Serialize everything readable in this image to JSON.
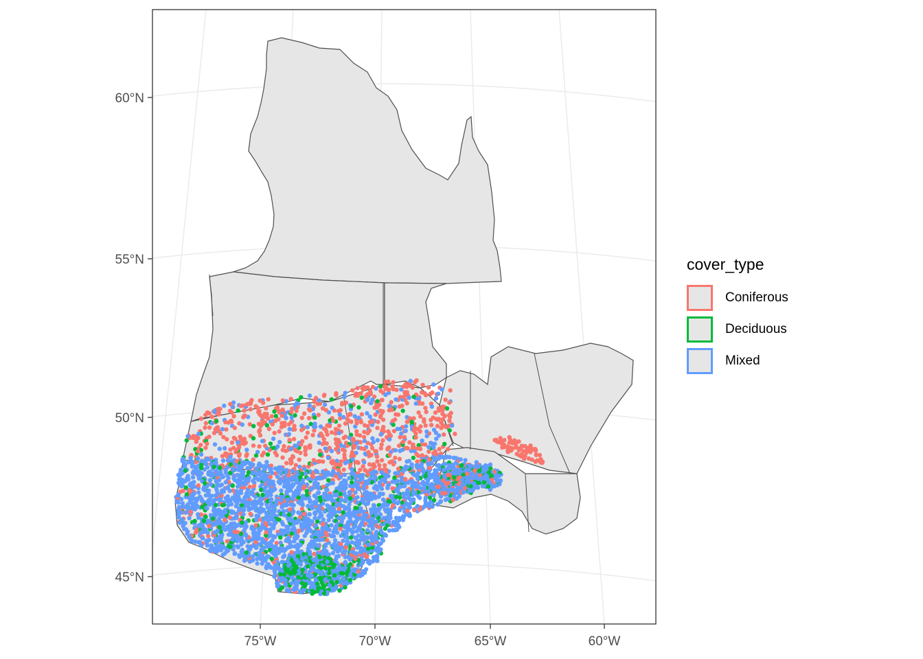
{
  "map": {
    "x_axis": {
      "ticks": [
        {
          "value": -75,
          "label": "75°W"
        },
        {
          "value": -70,
          "label": "70°W"
        },
        {
          "value": -65,
          "label": "65°W"
        },
        {
          "value": -60,
          "label": "60°W"
        }
      ]
    },
    "y_axis": {
      "ticks": [
        {
          "value": 60,
          "label": "60°N"
        },
        {
          "value": 55,
          "label": "55°N"
        },
        {
          "value": 50,
          "label": "50°N"
        },
        {
          "value": 45,
          "label": "45°N"
        }
      ]
    },
    "colors": {
      "land_fill": "#e6e6e6",
      "border": "#4d4d4d",
      "graticule": "#ebebeb",
      "panel_border": "#333333"
    }
  },
  "legend": {
    "title": "cover_type",
    "items": [
      {
        "label": "Coniferous",
        "color": "#F8766D"
      },
      {
        "label": "Deciduous",
        "color": "#00BA38"
      },
      {
        "label": "Mixed",
        "color": "#619CFF"
      }
    ]
  }
}
